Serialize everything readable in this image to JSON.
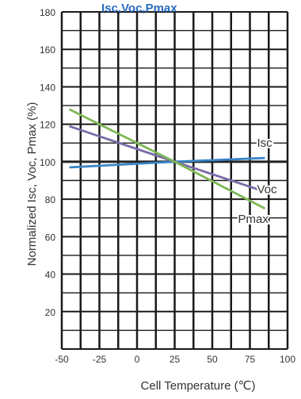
{
  "chart_data": {
    "type": "line",
    "title": "Isc,Voc,Pmax",
    "xlabel": "Cell Temperature (℃)",
    "ylabel": "Normalized Isc, Voc, Pmax (%)",
    "xlim": [
      -50,
      100
    ],
    "ylim": [
      0,
      180
    ],
    "x_ticks": [
      -50,
      -25,
      0,
      25,
      50,
      75,
      100
    ],
    "y_ticks": [
      20,
      40,
      60,
      80,
      100,
      120,
      140,
      160,
      180
    ],
    "x_tick_labels": [
      "-50",
      "-25",
      "0",
      "25",
      "50",
      "75",
      "100"
    ],
    "y_tick_labels": [
      "20",
      "40",
      "60",
      "80",
      "100",
      "120",
      "140",
      "160",
      "180"
    ],
    "grid": true,
    "legend": "inline labels at line ends",
    "series": [
      {
        "name": "Isc",
        "color": "#3a86c8",
        "x": [
          -45,
          25,
          85
        ],
        "y": [
          97,
          100,
          102
        ]
      },
      {
        "name": "Voc",
        "color": "#7b6ba8",
        "x": [
          -45,
          25,
          85
        ],
        "y": [
          119,
          100,
          84
        ]
      },
      {
        "name": "Pmax",
        "color": "#7db857",
        "x": [
          -45,
          25,
          85
        ],
        "y": [
          128,
          100,
          75
        ]
      }
    ],
    "reference_lines": [
      {
        "axis": "y",
        "value": 100,
        "color": "#222222"
      }
    ]
  }
}
